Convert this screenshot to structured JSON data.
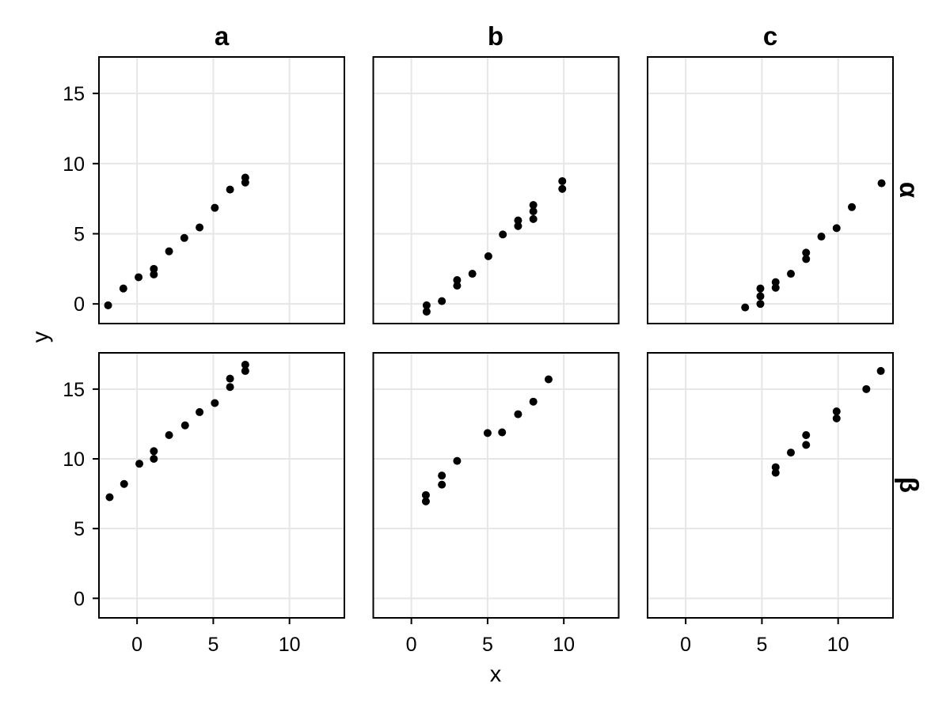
{
  "figure": {
    "background": "#ffffff"
  },
  "chart_data": {
    "type": "scatter",
    "title": "",
    "xlabel": "x",
    "ylabel": "y",
    "facet_cols": [
      "a",
      "b",
      "c"
    ],
    "facet_rows": [
      "α",
      "β"
    ],
    "x_ticks": [
      0,
      5,
      10
    ],
    "y_ticks": [
      0,
      5,
      10,
      15
    ],
    "xlim": [
      -2.5,
      13.6
    ],
    "ylim": [
      -1.4,
      17.6
    ],
    "grid": "major-only",
    "legend": "none",
    "point_color": "#000000",
    "point_radius": 5,
    "grid_color": "#e6e6e6",
    "border_color": "#000000",
    "tick_color": "#000000",
    "text_color": "#000000",
    "panels": [
      {
        "col": "a",
        "row": "α",
        "points": [
          [
            -1.9,
            -0.1
          ],
          [
            -0.9,
            1.1
          ],
          [
            0.1,
            1.9
          ],
          [
            1.1,
            2.5
          ],
          [
            1.1,
            2.1
          ],
          [
            2.1,
            3.75
          ],
          [
            3.1,
            4.7
          ],
          [
            4.1,
            5.45
          ],
          [
            5.1,
            6.85
          ],
          [
            6.1,
            8.15
          ],
          [
            7.1,
            9.0
          ],
          [
            7.1,
            8.65
          ]
        ]
      },
      {
        "col": "b",
        "row": "α",
        "points": [
          [
            1.0,
            -0.1
          ],
          [
            1.0,
            -0.55
          ],
          [
            2.0,
            0.2
          ],
          [
            3.0,
            1.7
          ],
          [
            3.0,
            1.3
          ],
          [
            4.0,
            2.15
          ],
          [
            5.05,
            3.4
          ],
          [
            6.0,
            4.95
          ],
          [
            7.0,
            5.95
          ],
          [
            7.0,
            5.55
          ],
          [
            8.0,
            7.05
          ],
          [
            8.0,
            6.6
          ],
          [
            8.0,
            6.05
          ],
          [
            9.9,
            8.75
          ],
          [
            9.9,
            8.2
          ]
        ]
      },
      {
        "col": "c",
        "row": "α",
        "points": [
          [
            3.9,
            -0.25
          ],
          [
            4.9,
            1.1
          ],
          [
            4.9,
            0.55
          ],
          [
            4.9,
            0.0
          ],
          [
            5.9,
            1.55
          ],
          [
            5.9,
            1.15
          ],
          [
            6.9,
            2.15
          ],
          [
            7.9,
            3.65
          ],
          [
            7.9,
            3.2
          ],
          [
            8.9,
            4.8
          ],
          [
            9.9,
            5.4
          ],
          [
            10.9,
            6.9
          ],
          [
            12.85,
            8.6
          ]
        ]
      },
      {
        "col": "a",
        "row": "β",
        "points": [
          [
            -1.8,
            7.25
          ],
          [
            -0.85,
            8.2
          ],
          [
            0.15,
            9.65
          ],
          [
            1.1,
            10.55
          ],
          [
            1.1,
            10.0
          ],
          [
            2.1,
            11.7
          ],
          [
            3.15,
            12.4
          ],
          [
            4.1,
            13.35
          ],
          [
            5.1,
            14.0
          ],
          [
            6.1,
            15.75
          ],
          [
            6.1,
            15.15
          ],
          [
            7.1,
            16.75
          ],
          [
            7.1,
            16.3
          ]
        ]
      },
      {
        "col": "b",
        "row": "β",
        "points": [
          [
            0.95,
            7.4
          ],
          [
            0.95,
            6.95
          ],
          [
            2.0,
            8.8
          ],
          [
            2.0,
            8.15
          ],
          [
            3.0,
            9.85
          ],
          [
            5.0,
            11.85
          ],
          [
            5.95,
            11.9
          ],
          [
            7.0,
            13.2
          ],
          [
            8.0,
            14.1
          ],
          [
            9.0,
            15.7
          ]
        ]
      },
      {
        "col": "c",
        "row": "β",
        "points": [
          [
            5.9,
            9.4
          ],
          [
            5.9,
            9.0
          ],
          [
            6.9,
            10.45
          ],
          [
            7.9,
            11.7
          ],
          [
            7.9,
            11.0
          ],
          [
            9.9,
            13.4
          ],
          [
            9.9,
            12.9
          ],
          [
            11.85,
            15.0
          ],
          [
            12.8,
            16.3
          ]
        ]
      }
    ]
  }
}
